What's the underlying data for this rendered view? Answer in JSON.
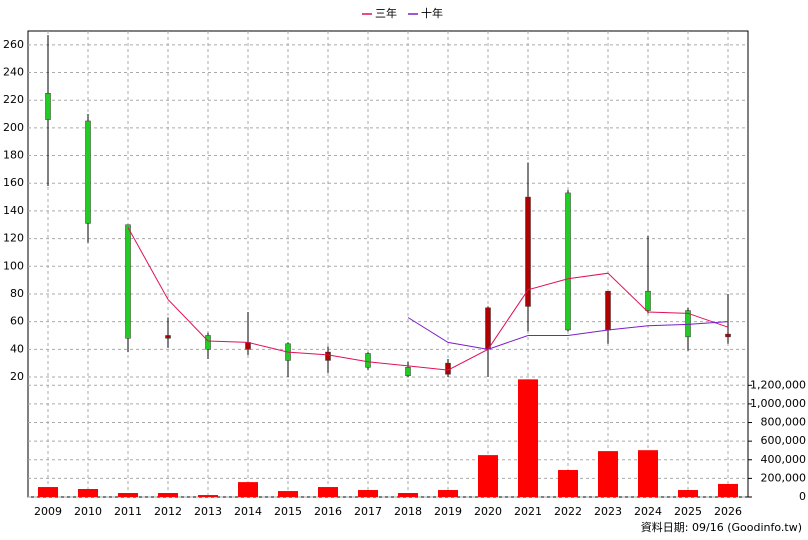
{
  "chart_data": {
    "type": "candlestick",
    "categories": [
      "2009",
      "2010",
      "2011",
      "2012",
      "2013",
      "2014",
      "2015",
      "2016",
      "2017",
      "2018",
      "2019",
      "2020",
      "2021",
      "2022",
      "2023",
      "2024",
      "2025",
      "2026"
    ],
    "open": [
      225,
      205,
      130,
      48,
      50,
      40,
      44,
      32,
      37,
      27,
      22,
      40,
      71,
      153,
      54,
      82,
      68,
      49
    ],
    "high": [
      267,
      210,
      130,
      63,
      52,
      67,
      45,
      42,
      38,
      31,
      33,
      71,
      175,
      155,
      82,
      122,
      70,
      80
    ],
    "low": [
      158,
      117,
      38,
      41,
      33,
      36,
      20,
      23,
      25,
      20,
      20,
      20,
      53,
      53,
      44,
      66,
      39,
      44
    ],
    "close": [
      206,
      131,
      48,
      50,
      40,
      45,
      32,
      38,
      27,
      21,
      30,
      70,
      150,
      54,
      82,
      68,
      49,
      51
    ],
    "up_color": "#b00000",
    "down_color": "#22cc22",
    "series": [
      {
        "name": "三年",
        "color": "#e0105a",
        "values": [
          null,
          null,
          128,
          76,
          46,
          45,
          38,
          36,
          31,
          28,
          25,
          40,
          83,
          91,
          95,
          67,
          66,
          56
        ]
      },
      {
        "name": "十年",
        "color": "#7a1fc8",
        "values": [
          null,
          null,
          null,
          null,
          null,
          null,
          null,
          null,
          null,
          63,
          45,
          40,
          50,
          50,
          54,
          57,
          58,
          60
        ]
      }
    ],
    "volume": {
      "color": "#ff0000",
      "axis": "y2",
      "values": [
        107000,
        86000,
        43000,
        43000,
        21000,
        160000,
        64000,
        107000,
        75000,
        43000,
        75000,
        450000,
        1264000,
        290000,
        493000,
        503000,
        75000,
        140000
      ]
    },
    "ylim": [
      20,
      270
    ],
    "yticks": [
      20,
      40,
      60,
      80,
      100,
      120,
      140,
      160,
      180,
      200,
      220,
      240,
      260
    ],
    "y2lim": [
      0,
      1300000
    ],
    "y2ticks": [
      {
        "value": 0,
        "label": "0"
      },
      {
        "value": 200000,
        "label": "200,000"
      },
      {
        "value": 400000,
        "label": "400,000"
      },
      {
        "value": 600000,
        "label": "600,000"
      },
      {
        "value": 800000,
        "label": "800,000"
      },
      {
        "value": 1000000,
        "label": "1,000,000"
      },
      {
        "value": 1200000,
        "label": "1,200,000"
      }
    ],
    "grid": true,
    "source": "資料日期: 09/16  (Goodinfo.tw)"
  }
}
